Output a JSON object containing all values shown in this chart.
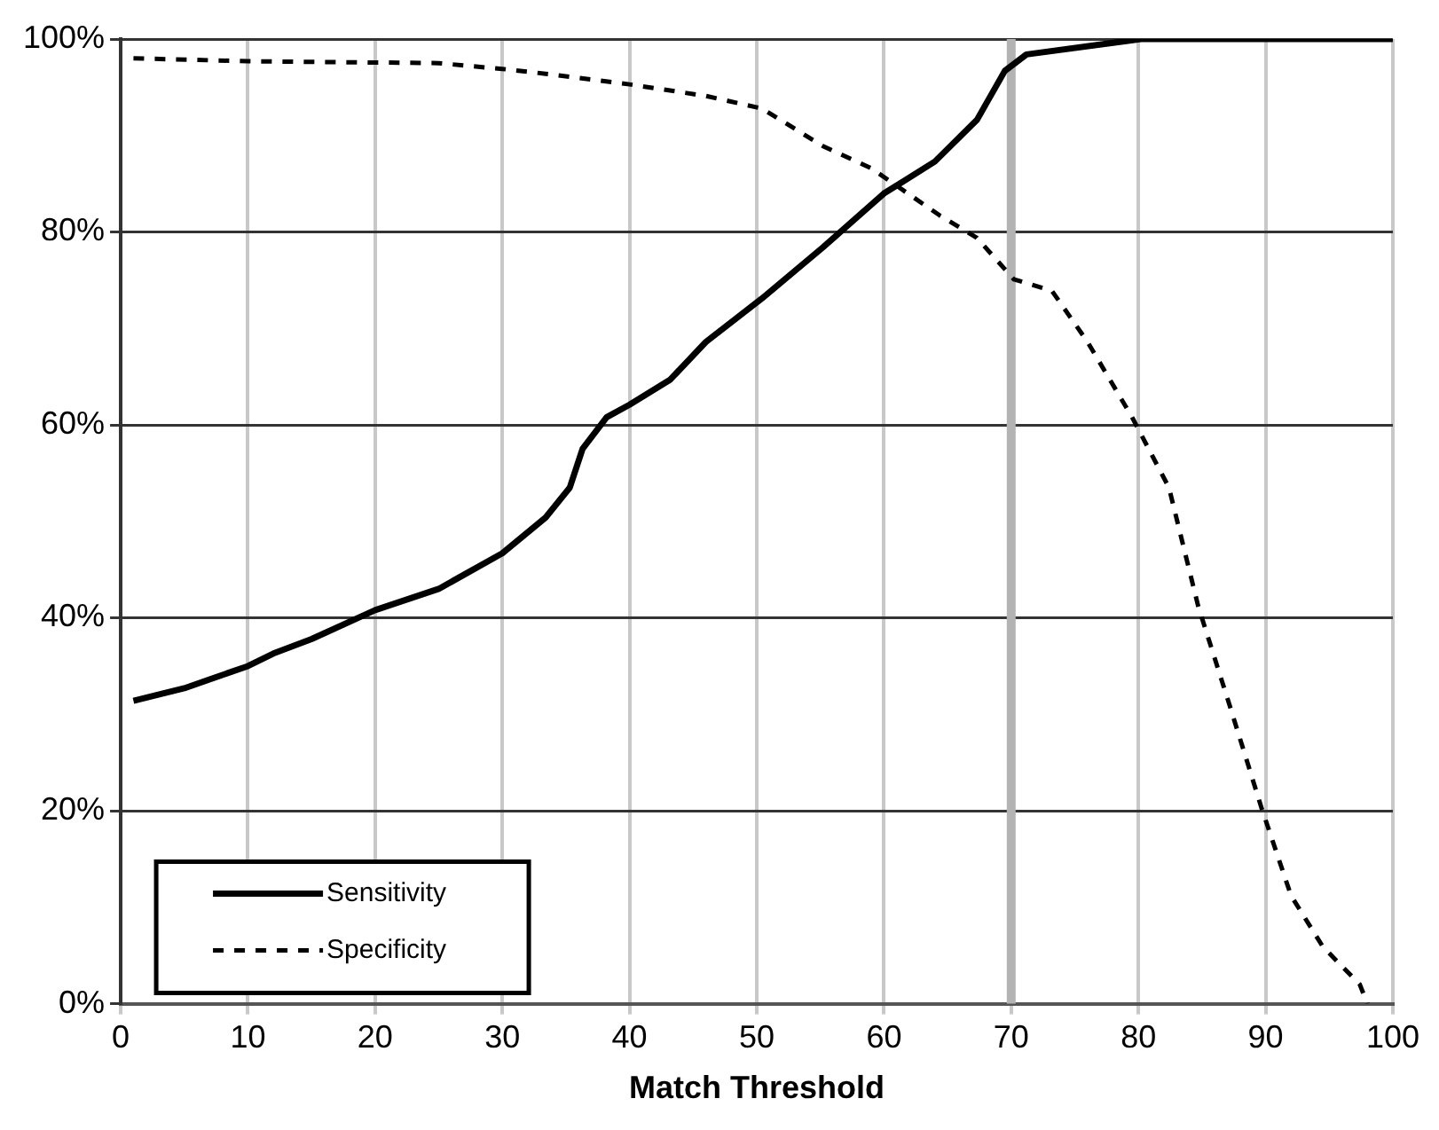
{
  "chart_data": {
    "type": "line",
    "xlabel": "Match Threshold",
    "xlim": [
      0,
      100
    ],
    "xticks": [
      0,
      10,
      20,
      30,
      40,
      50,
      60,
      70,
      80,
      90,
      100
    ],
    "ylim": [
      0,
      100
    ],
    "yticks": [
      {
        "value": 0,
        "label": "0%"
      },
      {
        "value": 20,
        "label": "20%"
      },
      {
        "value": 40,
        "label": "40%"
      },
      {
        "value": 60,
        "label": "60%"
      },
      {
        "value": 80,
        "label": "80%"
      },
      {
        "value": 100,
        "label": "100%"
      }
    ],
    "grid": true,
    "legend": "bottom left",
    "ref_lines": [
      {
        "axis": "x",
        "value": 70,
        "color": "#b3b3b3"
      }
    ],
    "series": [
      {
        "name": "Sensitivity",
        "color": "#000000",
        "line_style": "solid",
        "x": [
          1,
          5,
          10,
          12,
          15,
          20,
          25,
          30,
          33.4,
          35.3,
          36.3,
          38.2,
          40,
          43.2,
          46,
          50.4,
          55.2,
          60,
          64,
          67.3,
          69.5,
          71.2,
          80.2,
          90,
          100
        ],
        "values": [
          31.4,
          32.7,
          35,
          36.3,
          37.8,
          40.8,
          43,
          46.7,
          50.4,
          53.5,
          57.5,
          60.8,
          62.1,
          64.7,
          68.6,
          73.1,
          78.4,
          84,
          87.3,
          91.6,
          96.7,
          98.4,
          100,
          100,
          100
        ]
      },
      {
        "name": "Specificity",
        "color": "#000000",
        "line_style": "dashed",
        "x": [
          1,
          10,
          25,
          30,
          33.4,
          40,
          46,
          50.4,
          55.2,
          59,
          64.4,
          67.3,
          70.2,
          73.2,
          76,
          79.5,
          82.4,
          84.7,
          87.2,
          89.7,
          92,
          94.5,
          97.4,
          98
        ],
        "values": [
          98,
          97.7,
          97.5,
          96.9,
          96.4,
          95.3,
          94.1,
          92.8,
          88.9,
          86.6,
          81.7,
          79.4,
          75.1,
          73.9,
          68.6,
          60.8,
          53.5,
          41.2,
          30.8,
          20.2,
          11.2,
          5.9,
          2,
          0
        ]
      }
    ]
  }
}
